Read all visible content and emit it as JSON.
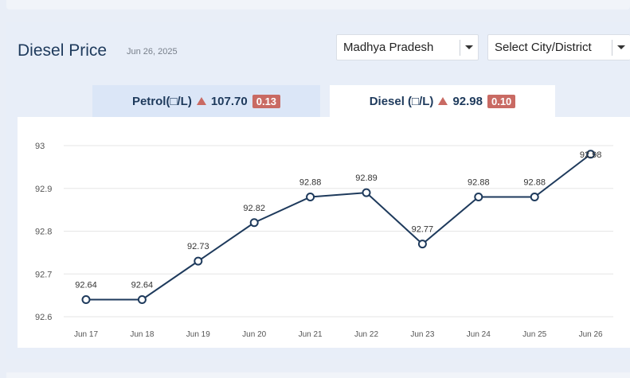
{
  "header": {
    "title": "Diesel Price",
    "date": "Jun 26, 2025"
  },
  "filters": {
    "state": "Madhya Pradesh",
    "city": "Select City/District"
  },
  "tabs": [
    {
      "label": "Petrol(□/L)",
      "price": "107.70",
      "change": "0.13",
      "trend": "up"
    },
    {
      "label": "Diesel (□/L)",
      "price": "92.98",
      "change": "0.10",
      "trend": "up",
      "active": true
    }
  ],
  "colors": {
    "line": "#1e3a5c",
    "badge": "#c96a63",
    "grid": "#e6e6e6"
  },
  "chart_data": {
    "type": "line",
    "categories": [
      "Jun 17",
      "Jun 18",
      "Jun 19",
      "Jun 20",
      "Jun 21",
      "Jun 22",
      "Jun 23",
      "Jun 24",
      "Jun 25",
      "Jun 26"
    ],
    "values": [
      92.64,
      92.64,
      92.73,
      92.82,
      92.88,
      92.89,
      92.77,
      92.88,
      92.88,
      92.98
    ],
    "ylim": [
      92.6,
      93.0
    ],
    "yticks": [
      "92.6",
      "92.7",
      "92.8",
      "92.9",
      "93"
    ],
    "grid": true,
    "data_labels": true
  }
}
